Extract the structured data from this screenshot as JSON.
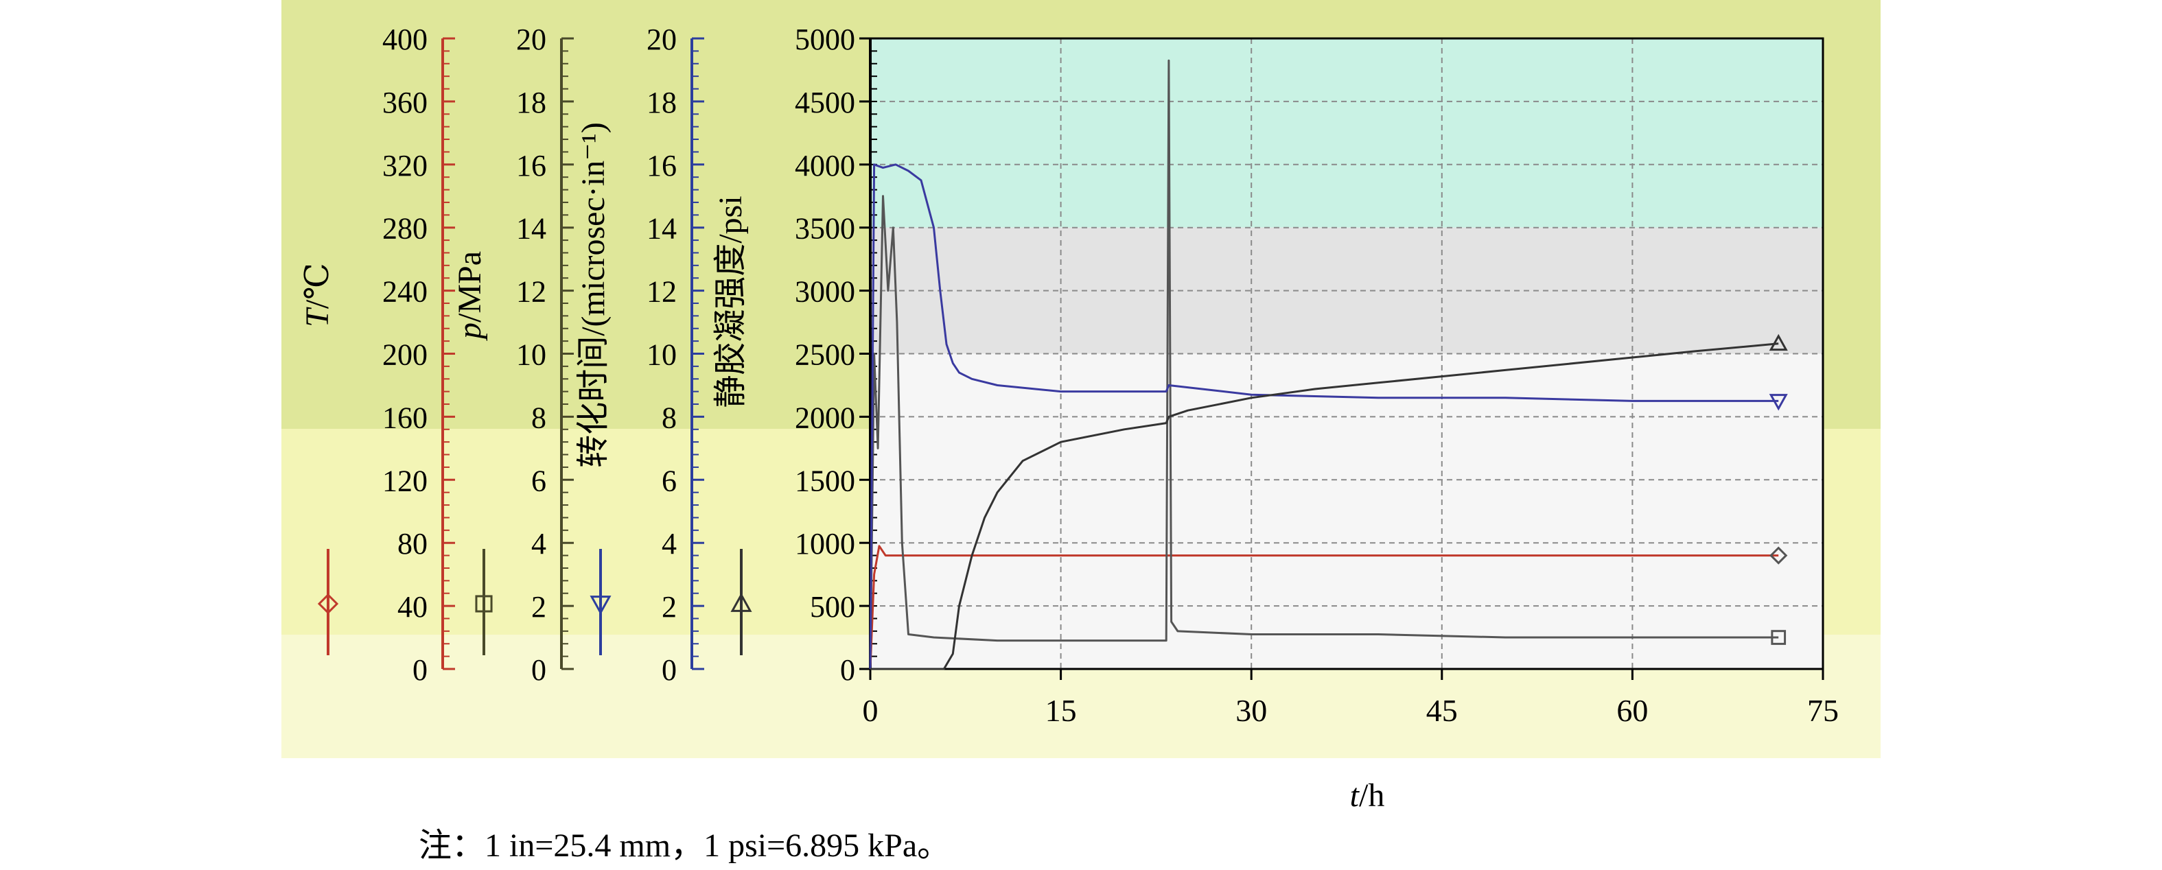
{
  "chart_data": {
    "type": "line",
    "xlabel": "t/h",
    "xlim": [
      0,
      75
    ],
    "xticks": [
      0,
      15,
      30,
      45,
      60,
      75
    ],
    "grid": true,
    "legend_placement": "left, beside each axis",
    "note": "注：1 in=25.4 mm，1 psi=6.895 kPa。",
    "axes": [
      {
        "id": "T",
        "label": "T/℃",
        "range": [
          0,
          400
        ],
        "ticks": [
          0,
          40,
          80,
          120,
          160,
          200,
          240,
          280,
          320,
          360,
          400
        ],
        "color": "#c0392b"
      },
      {
        "id": "p",
        "label": "p/MPa",
        "range": [
          0,
          20
        ],
        "ticks": [
          0,
          2,
          4,
          6,
          8,
          10,
          12,
          14,
          16,
          18,
          20
        ],
        "color": "#4a4a2a"
      },
      {
        "id": "tt",
        "label": "转化时间/(microsec·in⁻¹)",
        "range": [
          0,
          20
        ],
        "ticks": [
          0,
          2,
          4,
          6,
          8,
          10,
          12,
          14,
          16,
          18,
          20
        ],
        "color": "#2c3e9e"
      },
      {
        "id": "sgs",
        "label": "静胶凝强度/psi",
        "range": [
          0,
          5000
        ],
        "ticks": [
          0,
          500,
          1000,
          1500,
          2000,
          2500,
          3000,
          3500,
          4000,
          4500,
          5000
        ],
        "color": "#333333"
      }
    ],
    "series": [
      {
        "axis": "T",
        "marker": "diamond",
        "color": "#c0392b",
        "x": [
          0,
          0.3,
          0.7,
          1.2,
          2,
          5,
          10,
          20,
          30,
          40,
          50,
          60,
          71.5
        ],
        "y": [
          0,
          60,
          78,
          72,
          72,
          72,
          72,
          72,
          72,
          72,
          72,
          72,
          72
        ]
      },
      {
        "axis": "p",
        "marker": "square",
        "color": "#555555",
        "x": [
          0,
          0.3,
          0.6,
          1.0,
          1.4,
          1.8,
          2.1,
          2.5,
          3.0,
          5,
          10,
          15,
          20,
          23.3,
          23.5,
          23.7,
          24.2,
          30,
          40,
          50,
          60,
          71.5
        ],
        "y": [
          0,
          10,
          7,
          15,
          12,
          14,
          11,
          4,
          1.1,
          1.0,
          0.9,
          0.9,
          0.9,
          0.9,
          19.3,
          1.5,
          1.2,
          1.1,
          1.1,
          1.0,
          1.0,
          1.0
        ]
      },
      {
        "axis": "tt",
        "marker": "triangle-down",
        "color": "#3a3aa0",
        "x": [
          0,
          0.3,
          1,
          2,
          3,
          4,
          5,
          5.5,
          6,
          6.5,
          7,
          8,
          10,
          15,
          20,
          23.3,
          23.5,
          30,
          40,
          50,
          60,
          71.5
        ],
        "y": [
          0,
          16,
          15.9,
          16,
          15.8,
          15.5,
          14,
          12,
          10.3,
          9.7,
          9.4,
          9.2,
          9.0,
          8.8,
          8.8,
          8.8,
          9.0,
          8.7,
          8.6,
          8.6,
          8.5,
          8.5
        ]
      },
      {
        "axis": "sgs",
        "marker": "triangle-up",
        "color": "#333333",
        "x": [
          0,
          5,
          5.8,
          6.5,
          7,
          8,
          9,
          10,
          12,
          15,
          20,
          23.3,
          23.5,
          25,
          30,
          35,
          40,
          45,
          50,
          55,
          60,
          65,
          71.5
        ],
        "y": [
          0,
          0,
          0,
          120,
          500,
          900,
          1200,
          1400,
          1650,
          1800,
          1900,
          1950,
          2000,
          2050,
          2150,
          2220,
          2270,
          2320,
          2370,
          2420,
          2470,
          2520,
          2580
        ]
      }
    ]
  }
}
